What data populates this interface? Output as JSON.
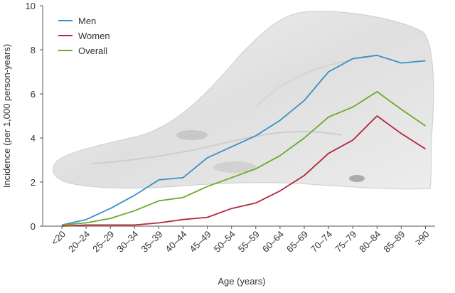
{
  "chart_data": {
    "type": "line",
    "title": "",
    "xlabel": "Age (years)",
    "ylabel": "Incidence (per 1,000 person-years)",
    "ylim": [
      0,
      10
    ],
    "yticks": [
      0,
      2,
      4,
      6,
      8,
      10
    ],
    "grid": false,
    "legend_position": "top-left",
    "categories": [
      "<20",
      "20–24",
      "25–29",
      "30–34",
      "35–39",
      "40–44",
      "45–49",
      "50–54",
      "55–59",
      "60–64",
      "65–69",
      "70–74",
      "75–79",
      "80–84",
      "85–89",
      "≥90"
    ],
    "series": [
      {
        "name": "Men",
        "color": "#3a8fc8",
        "values": [
          0.05,
          0.3,
          0.8,
          1.4,
          2.1,
          2.2,
          3.1,
          3.6,
          4.1,
          4.8,
          5.7,
          7.0,
          7.6,
          7.75,
          7.4,
          7.5
        ]
      },
      {
        "name": "Women",
        "color": "#b5253a",
        "values": [
          0.0,
          0.05,
          0.05,
          0.05,
          0.15,
          0.3,
          0.4,
          0.8,
          1.05,
          1.6,
          2.3,
          3.3,
          3.9,
          5.0,
          4.2,
          3.5
        ]
      },
      {
        "name": "Overall",
        "color": "#6aaa2a",
        "values": [
          0.05,
          0.15,
          0.35,
          0.7,
          1.15,
          1.3,
          1.8,
          2.2,
          2.6,
          3.2,
          4.0,
          4.95,
          5.4,
          6.1,
          5.3,
          4.55
        ]
      }
    ]
  },
  "icons": {
    "background": "foot-illustration"
  }
}
